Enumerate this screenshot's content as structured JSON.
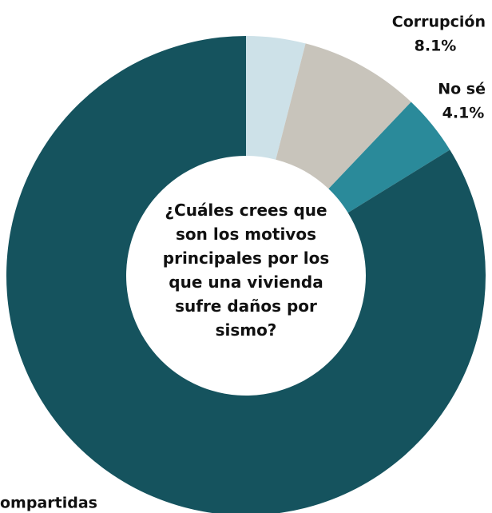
{
  "chart_data": {
    "type": "donut",
    "title": "¿Cuáles crees que son los motivos principales por los que una vivienda sufre daños por sismo?",
    "categories": [
      null,
      "Corrupción",
      "No sé",
      "ompartidas"
    ],
    "values": [
      4,
      8.1,
      4.1,
      83.8
    ],
    "value_labels": [
      null,
      "8.1%",
      "4.1%",
      null
    ],
    "colors": [
      "#cde1e8",
      "#c8c4bb",
      "#2a8a9a",
      "#15535e"
    ]
  }
}
